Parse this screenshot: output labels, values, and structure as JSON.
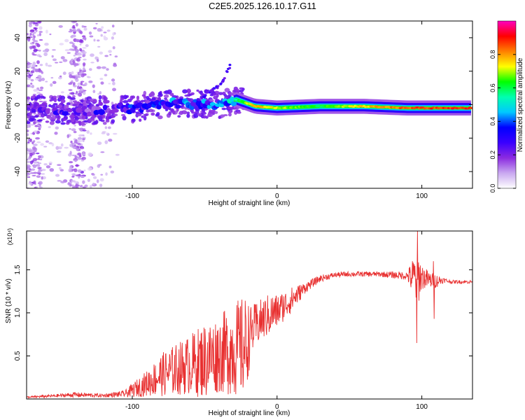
{
  "figure_title": "C2E5.2025.126.10.17.G11",
  "chart_data": [
    {
      "type": "heatmap",
      "name": "spectrogram",
      "xlabel": "Height of straight line (km)",
      "ylabel": "Frequency (Hz)",
      "xlim": [
        -173,
        135
      ],
      "ylim": [
        -50,
        50
      ],
      "x_ticks": [
        -100,
        0,
        100
      ],
      "x_tick_labels": [
        "-100",
        "0",
        "100"
      ],
      "y_ticks": [
        -40,
        -20,
        0,
        20,
        40
      ],
      "y_tick_labels": [
        "-40",
        "-20",
        "0",
        "20",
        "40"
      ],
      "colorbar": {
        "label": "Normalized spectral amplitude",
        "range": [
          0,
          1
        ],
        "ticks": [
          0.0,
          0.2,
          0.4,
          0.6,
          0.8
        ],
        "tick_labels": [
          "0.0",
          "0.2",
          "0.4",
          "0.6",
          "0.8"
        ],
        "colors": [
          "#ffffff",
          "#c9a8f0",
          "#8b2be0",
          "#3a00ff",
          "#0000ff",
          "#00c8ff",
          "#00ffb0",
          "#00ff00",
          "#ffff00",
          "#ff8000",
          "#ff0000",
          "#ff00c0"
        ]
      },
      "features": {
        "noise_region_x": [
          -173,
          -110
        ],
        "noise_columns_x": [
          -168,
          -138
        ],
        "main_band_points": [
          {
            "x": -160,
            "f": -3,
            "amp": 0.25
          },
          {
            "x": -130,
            "f": -4,
            "amp": 0.2
          },
          {
            "x": -100,
            "f": -2,
            "amp": 0.3
          },
          {
            "x": -70,
            "f": 1,
            "amp": 0.35
          },
          {
            "x": -40,
            "f": 0,
            "amp": 0.35
          },
          {
            "x": -28,
            "f": 3,
            "amp": 0.55
          },
          {
            "x": -15,
            "f": -1,
            "amp": 0.8
          },
          {
            "x": 0,
            "f": -2,
            "amp": 0.7
          },
          {
            "x": 30,
            "f": -1,
            "amp": 0.6
          },
          {
            "x": 60,
            "f": -1,
            "amp": 0.75
          },
          {
            "x": 90,
            "f": -2,
            "amp": 0.85
          },
          {
            "x": 135,
            "f": -2,
            "amp": 0.9
          }
        ],
        "rising_trace": [
          {
            "x": -55,
            "f": 3
          },
          {
            "x": -45,
            "f": 8
          },
          {
            "x": -38,
            "f": 13
          },
          {
            "x": -32,
            "f": 24
          }
        ]
      }
    },
    {
      "type": "line",
      "name": "snr",
      "xlabel": "Height of straight line (km)",
      "ylabel": "SNR (10 * v/v)",
      "scale_label": "(x10⁴)",
      "xlim": [
        -173,
        135
      ],
      "ylim": [
        0,
        1.95
      ],
      "x_ticks": [
        -100,
        0,
        100
      ],
      "x_tick_labels": [
        "-100",
        "0",
        "100"
      ],
      "y_ticks": [
        0.5,
        1.0,
        1.5
      ],
      "y_tick_labels": [
        "0.5",
        "1.0",
        "1.5"
      ],
      "series": [
        {
          "name": "SNR",
          "color": "#e83030",
          "x": [
            -173,
            -150,
            -140,
            -120,
            -105,
            -100,
            -90,
            -80,
            -70,
            -60,
            -50,
            -40,
            -30,
            -22,
            -18,
            -12,
            -5,
            0,
            10,
            20,
            30,
            40,
            50,
            60,
            70,
            80,
            90,
            95,
            97,
            100,
            105,
            110,
            115,
            120,
            135
          ],
          "y": [
            0.02,
            0.04,
            0.05,
            0.04,
            0.06,
            0.1,
            0.18,
            0.28,
            0.34,
            0.4,
            0.45,
            0.52,
            0.58,
            0.6,
            0.78,
            0.9,
            0.98,
            1.02,
            1.15,
            1.3,
            1.4,
            1.44,
            1.45,
            1.45,
            1.45,
            1.44,
            1.43,
            1.4,
            1.41,
            1.42,
            1.38,
            1.37,
            1.38,
            1.36,
            1.36
          ],
          "noise_amplitude": [
            0.01,
            0.02,
            0.03,
            0.02,
            0.04,
            0.08,
            0.15,
            0.25,
            0.3,
            0.35,
            0.45,
            0.45,
            0.55,
            0.6,
            0.3,
            0.25,
            0.25,
            0.2,
            0.15,
            0.06,
            0.04,
            0.03,
            0.03,
            0.03,
            0.03,
            0.04,
            0.05,
            0.3,
            0.35,
            0.15,
            0.1,
            0.08,
            0.03,
            0.02,
            0.02
          ],
          "spikes": [
            {
              "x": 97,
              "y": 1.95
            },
            {
              "x": 96.5,
              "y": 0.65
            },
            {
              "x": 108,
              "y": 1.6
            },
            {
              "x": 108.5,
              "y": 0.93
            }
          ]
        }
      ]
    }
  ]
}
